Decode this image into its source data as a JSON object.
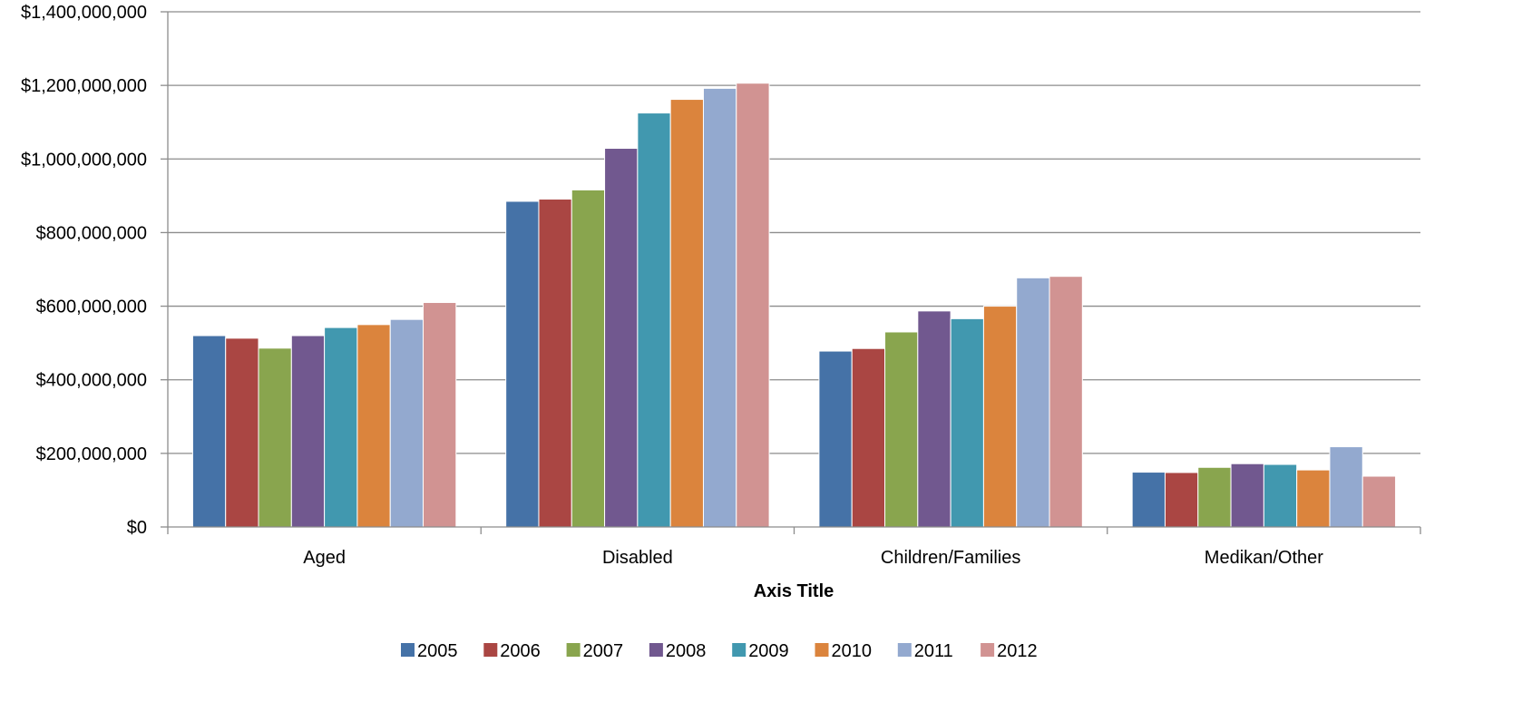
{
  "chart_data": {
    "type": "bar",
    "xlabel": "Axis Title",
    "ylabel": "",
    "ylim": [
      0,
      1400000000
    ],
    "y_ticks": [
      0,
      200000000,
      400000000,
      600000000,
      800000000,
      1000000000,
      1200000000,
      1400000000
    ],
    "y_tick_labels": [
      "$0",
      "$200,000,000",
      "$400,000,000",
      "$600,000,000",
      "$800,000,000",
      "$1,000,000,000",
      "$1,200,000,000",
      "$1,400,000,000"
    ],
    "grid": true,
    "legend_position": "bottom",
    "categories": [
      "Aged",
      "Disabled",
      "Children/Families",
      "Medikan/Other"
    ],
    "series": [
      {
        "name": "2005",
        "color": "#4572A7",
        "values": [
          520000000,
          885000000,
          478000000,
          149000000
        ]
      },
      {
        "name": "2006",
        "color": "#AA4643",
        "values": [
          513000000,
          891000000,
          485000000,
          148000000
        ]
      },
      {
        "name": "2007",
        "color": "#89A54E",
        "values": [
          486000000,
          916000000,
          530000000,
          162000000
        ]
      },
      {
        "name": "2008",
        "color": "#71588F",
        "values": [
          520000000,
          1029000000,
          587000000,
          172000000
        ]
      },
      {
        "name": "2009",
        "color": "#4198AF",
        "values": [
          542000000,
          1125000000,
          566000000,
          170000000
        ]
      },
      {
        "name": "2010",
        "color": "#DB843D",
        "values": [
          550000000,
          1162000000,
          600000000,
          155000000
        ]
      },
      {
        "name": "2011",
        "color": "#93A9CF",
        "values": [
          564000000,
          1192000000,
          677000000,
          218000000
        ]
      },
      {
        "name": "2012",
        "color": "#D19392",
        "values": [
          610000000,
          1206000000,
          681000000,
          138000000
        ]
      }
    ]
  }
}
